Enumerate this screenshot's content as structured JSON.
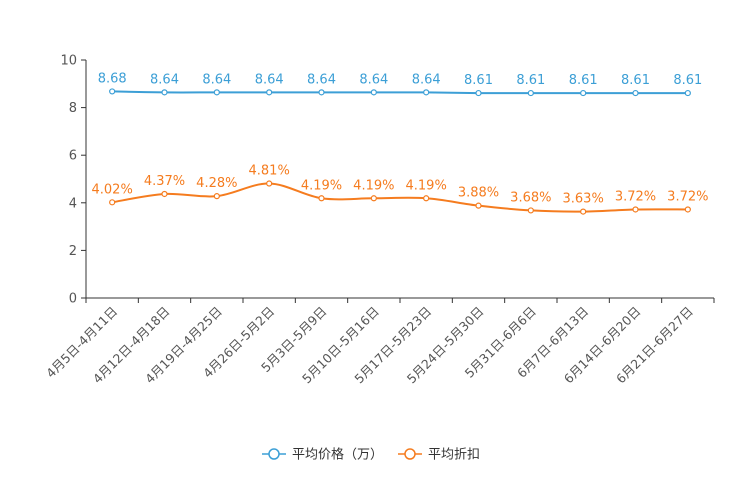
{
  "chart_data": {
    "type": "line",
    "title": "",
    "xlabel": "",
    "ylabel": "",
    "ylim": [
      0,
      10
    ],
    "yticks": [
      "0",
      "2",
      "4",
      "6",
      "8",
      "10"
    ],
    "categories": [
      "4月5日-4月11日",
      "4月12日-4月18日",
      "4月19日-4月25日",
      "4月26日-5月2日",
      "5月3日-5月9日",
      "5月10日-5月16日",
      "5月17日-5月23日",
      "5月24日-5月30日",
      "5月31日-6月6日",
      "6月7日-6月13日",
      "6月14日-6月20日",
      "6月21日-6月27日"
    ],
    "series": [
      {
        "name": "平均价格（万）",
        "color": "#3c9fd6",
        "values": [
          8.68,
          8.64,
          8.64,
          8.64,
          8.64,
          8.64,
          8.64,
          8.61,
          8.61,
          8.61,
          8.61,
          8.61
        ],
        "labels": [
          "8.68",
          "8.64",
          "8.64",
          "8.64",
          "8.64",
          "8.64",
          "8.64",
          "8.61",
          "8.61",
          "8.61",
          "8.61",
          "8.61"
        ]
      },
      {
        "name": "平均折扣",
        "color": "#f57c1f",
        "values": [
          4.02,
          4.37,
          4.28,
          4.81,
          4.19,
          4.19,
          4.19,
          3.88,
          3.68,
          3.63,
          3.72,
          3.72
        ],
        "labels": [
          "4.02%",
          "4.37%",
          "4.28%",
          "4.81%",
          "4.19%",
          "4.19%",
          "4.19%",
          "3.88%",
          "3.68%",
          "3.63%",
          "3.72%",
          "3.72%"
        ]
      }
    ],
    "legend": "bottom-center",
    "grid": false
  }
}
